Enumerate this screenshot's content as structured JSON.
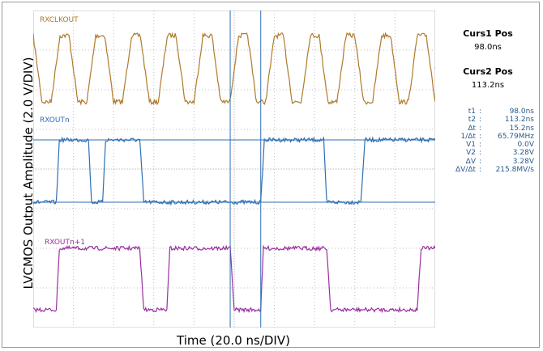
{
  "chart_data": {
    "type": "line",
    "xlabel": "Time (20.0 ns/DIV)",
    "ylabel": "LVCMOS Output Amplitude (2.0 V/DIV)",
    "x_unit": "ns",
    "xlim": [
      0,
      200
    ],
    "grid": true,
    "series": [
      {
        "name": "RXCLKOUT",
        "color": "#b07a2a",
        "x": [
          0,
          4.4,
          8.9,
          13.3,
          17.8,
          22.2,
          26.7,
          31.1,
          35.6,
          40,
          44.4,
          48.9,
          53.3,
          57.8,
          62.2,
          66.7,
          71.1,
          75.6,
          80,
          84.4,
          88.9,
          93.3,
          97.8,
          102.2,
          106.7,
          111.1,
          115.6,
          120,
          124.4,
          128.9,
          133.3,
          137.8,
          142.2,
          146.7,
          151.1,
          155.6,
          160,
          164.4,
          168.9,
          173.3,
          177.8,
          182.2,
          186.7,
          191.1,
          195.6,
          200
        ],
        "y_volts": [
          3.3,
          0,
          0,
          3.3,
          3.3,
          0,
          0,
          3.3,
          3.3,
          0,
          0,
          3.3,
          3.3,
          0,
          0,
          3.3,
          3.3,
          0,
          0,
          3.3,
          3.3,
          0,
          0,
          3.3,
          3.3,
          0,
          0,
          3.3,
          3.3,
          0,
          0,
          3.3,
          3.3,
          0,
          0,
          3.3,
          3.3,
          0,
          0,
          3.3,
          3.3,
          0,
          0,
          3.3,
          3.3,
          0
        ]
      },
      {
        "name": "RXOUTn",
        "color": "#2f6fb3",
        "x": [
          0,
          11.5,
          13,
          27.5,
          29,
          34.5,
          36,
          53,
          55,
          98,
          99.5,
          113.2,
          115,
          144.5,
          146,
          163,
          165,
          179.5,
          181,
          200
        ],
        "y_volts": [
          0,
          0,
          3.28,
          3.28,
          0,
          0,
          3.28,
          3.28,
          0,
          0,
          0,
          0,
          3.28,
          3.28,
          0,
          0,
          3.28,
          3.28,
          3.28,
          3.28
        ]
      },
      {
        "name": "RXOUTn+1",
        "color": "#9a2fa0",
        "x": [
          0,
          11.5,
          13,
          53,
          55,
          66.5,
          68,
          98,
          100,
          113.2,
          114.5,
          146,
          148,
          191,
          193,
          200
        ],
        "y_volts": [
          0,
          0,
          3.28,
          3.28,
          0,
          0,
          3.28,
          3.28,
          0,
          0,
          3.28,
          3.28,
          0,
          0,
          3.28,
          3.28
        ]
      }
    ],
    "cursors": [
      {
        "name": "Curs1 Pos",
        "value": "98.0ns"
      },
      {
        "name": "Curs2 Pos",
        "value": "113.2ns"
      }
    ]
  },
  "readout": {
    "curs1_title": "Curs1 Pos",
    "curs1_value": "98.0ns",
    "curs2_title": "Curs2 Pos",
    "curs2_value": "113.2ns",
    "measurements": [
      {
        "label": "t1",
        "value": "98.0ns"
      },
      {
        "label": "t2",
        "value": "113.2ns"
      },
      {
        "label": "Δt",
        "value": "15.2ns"
      },
      {
        "label": "1/Δt",
        "value": "65.79MHz"
      },
      {
        "label": "V1",
        "value": "0.0V"
      },
      {
        "label": "V2",
        "value": "3.28V"
      },
      {
        "label": "ΔV",
        "value": "3.28V"
      },
      {
        "label": "ΔV/Δt",
        "value": "215.8MV/s"
      }
    ]
  },
  "colors": {
    "grid": "#bdbdbd",
    "cursor": "#2f6fb3",
    "clk": "#b07a2a",
    "data": "#2f6fb3",
    "data2": "#9a2fa0"
  }
}
